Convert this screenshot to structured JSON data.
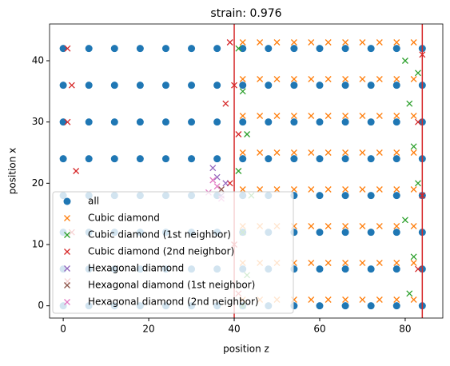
{
  "chart_data": {
    "type": "scatter",
    "title": "strain: 0.976",
    "x_label": "position z",
    "y_label": "position x",
    "xlim": [
      -3.2,
      88.8
    ],
    "ylim": [
      -2,
      46
    ],
    "xticks": [
      0,
      20,
      40,
      60,
      80
    ],
    "yticks": [
      0,
      10,
      20,
      30,
      40
    ],
    "vlines": [
      40,
      84
    ],
    "vline_color": "#d62728",
    "legend": "lower left",
    "series": [
      {
        "name": "all",
        "marker": "o",
        "color": "#1f77b4",
        "x": [
          0,
          6,
          12,
          18,
          24,
          30,
          36,
          42,
          48,
          54,
          60,
          66,
          72,
          78,
          84,
          0,
          6,
          12,
          18,
          24,
          30,
          36,
          42,
          48,
          54,
          60,
          66,
          72,
          78,
          84,
          0,
          6,
          12,
          18,
          24,
          30,
          36,
          42,
          48,
          54,
          60,
          66,
          72,
          78,
          84,
          0,
          6,
          12,
          18,
          24,
          30,
          36,
          42,
          48,
          54,
          60,
          66,
          72,
          78,
          84,
          0,
          6,
          12,
          18,
          24,
          30,
          36,
          42,
          48,
          54,
          60,
          66,
          72,
          78,
          84,
          0,
          6,
          12,
          18,
          24,
          30,
          36,
          42,
          48,
          54,
          60,
          66,
          72,
          78,
          84,
          0,
          6,
          12,
          18,
          24,
          30,
          36,
          42,
          48,
          54,
          60,
          66,
          72,
          78,
          84,
          0,
          6,
          12,
          18,
          24,
          30,
          36,
          42,
          48,
          54,
          60,
          66,
          72,
          78,
          84
        ],
        "y": [
          0,
          0,
          0,
          0,
          0,
          0,
          0,
          0,
          0,
          0,
          0,
          0,
          0,
          0,
          0,
          6,
          6,
          6,
          6,
          6,
          6,
          6,
          6,
          6,
          6,
          6,
          6,
          6,
          6,
          6,
          12,
          12,
          12,
          12,
          12,
          12,
          12,
          12,
          12,
          12,
          12,
          12,
          12,
          12,
          12,
          18,
          18,
          18,
          18,
          18,
          18,
          18,
          18,
          18,
          18,
          18,
          18,
          18,
          18,
          18,
          24,
          24,
          24,
          24,
          24,
          24,
          24,
          24,
          24,
          24,
          24,
          24,
          24,
          24,
          24,
          30,
          30,
          30,
          30,
          30,
          30,
          30,
          30,
          30,
          30,
          30,
          30,
          30,
          30,
          30,
          36,
          36,
          36,
          36,
          36,
          36,
          36,
          36,
          36,
          36,
          36,
          36,
          36,
          36,
          36,
          42,
          42,
          42,
          42,
          42,
          42,
          42,
          42,
          42,
          42,
          42,
          42,
          42,
          42,
          42
        ]
      },
      {
        "name": "Cubic diamond",
        "marker": "x",
        "color": "#ff7f0e",
        "x": [
          42,
          46,
          50,
          54,
          58,
          62,
          66,
          70,
          74,
          78,
          82,
          42,
          46,
          50,
          54,
          58,
          62,
          66,
          70,
          74,
          78,
          82,
          42,
          46,
          50,
          54,
          58,
          62,
          66,
          70,
          74,
          78,
          82,
          42,
          46,
          50,
          54,
          58,
          62,
          66,
          70,
          74,
          78,
          82,
          42,
          46,
          50,
          54,
          58,
          62,
          66,
          70,
          74,
          78,
          82,
          42,
          46,
          50,
          54,
          58,
          62,
          66,
          70,
          74,
          78,
          82,
          42,
          46,
          50,
          54,
          58,
          62,
          66,
          70,
          74,
          78,
          82,
          42,
          46,
          50,
          54,
          58,
          62,
          66,
          70,
          74,
          78,
          82
        ],
        "y": [
          1,
          1,
          1,
          1,
          1,
          1,
          1,
          1,
          1,
          1,
          1,
          7,
          7,
          7,
          7,
          7,
          7,
          7,
          7,
          7,
          7,
          7,
          13,
          13,
          13,
          13,
          13,
          13,
          13,
          13,
          13,
          13,
          13,
          19,
          19,
          19,
          19,
          19,
          19,
          19,
          19,
          19,
          19,
          19,
          25,
          25,
          25,
          25,
          25,
          25,
          25,
          25,
          25,
          25,
          25,
          31,
          31,
          31,
          31,
          31,
          31,
          31,
          31,
          31,
          31,
          31,
          37,
          37,
          37,
          37,
          37,
          37,
          37,
          37,
          37,
          37,
          37,
          43,
          43,
          43,
          43,
          43,
          43,
          43,
          43,
          43,
          43,
          43
        ]
      },
      {
        "name": "Cubic diamond (1st neighbor)",
        "marker": "x",
        "color": "#2ca02c",
        "x": [
          41,
          42,
          43,
          41,
          44,
          42,
          43,
          80,
          81,
          82,
          83,
          80,
          82,
          81,
          83,
          42
        ],
        "y": [
          42,
          35,
          28,
          22,
          18,
          12,
          5,
          40,
          33,
          26,
          20,
          14,
          8,
          2,
          38,
          0
        ]
      },
      {
        "name": "Cubic diamond (2nd neighbor)",
        "marker": "x",
        "color": "#d62728",
        "x": [
          1,
          2,
          1,
          3,
          2,
          1,
          39,
          40,
          41,
          39,
          40,
          41,
          84,
          83,
          84,
          83,
          38
        ],
        "y": [
          42,
          36,
          30,
          22,
          12,
          4,
          43,
          36,
          28,
          20,
          10,
          2,
          41,
          30,
          18,
          6,
          33
        ]
      },
      {
        "name": "Hexagonal diamond",
        "marker": "x",
        "color": "#9467bd",
        "x": [
          35,
          36,
          38,
          37
        ],
        "y": [
          22.5,
          21,
          20,
          18
        ]
      },
      {
        "name": "Hexagonal diamond (1st neighbor)",
        "marker": "x",
        "color": "#8c564b",
        "x": [
          37
        ],
        "y": [
          19
        ]
      },
      {
        "name": "Hexagonal diamond (2nd neighbor)",
        "marker": "x",
        "color": "#e377c2",
        "x": [
          34,
          36,
          37,
          35
        ],
        "y": [
          18.5,
          19.5,
          17.5,
          20.5
        ]
      }
    ]
  }
}
